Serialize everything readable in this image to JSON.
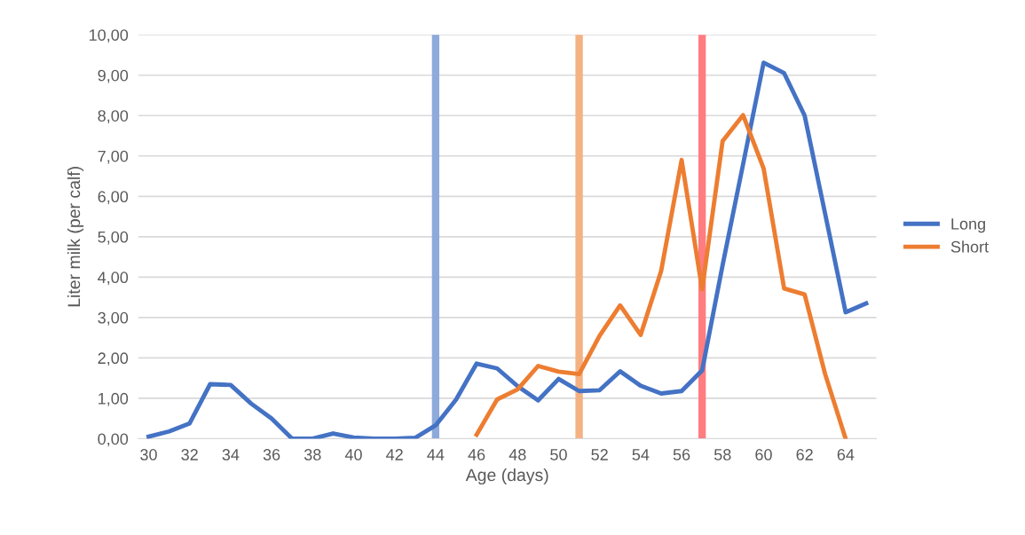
{
  "chart_data": {
    "type": "line",
    "xlabel": "Age (days)",
    "ylabel": "Liter milk (per calf)",
    "x": [
      30,
      31,
      32,
      33,
      34,
      35,
      36,
      37,
      38,
      39,
      40,
      41,
      42,
      43,
      44,
      45,
      46,
      47,
      48,
      49,
      50,
      51,
      52,
      53,
      54,
      55,
      56,
      57,
      58,
      59,
      60,
      61,
      62,
      63,
      64,
      65
    ],
    "series": [
      {
        "name": "Long",
        "color": "#4472c4",
        "values": [
          0.05,
          0.18,
          0.38,
          1.35,
          1.33,
          0.87,
          0.5,
          0,
          0,
          0.13,
          0.03,
          0,
          0,
          0.02,
          0.33,
          0.97,
          1.86,
          1.74,
          1.3,
          0.95,
          1.48,
          1.18,
          1.2,
          1.67,
          1.31,
          1.12,
          1.18,
          1.69,
          4.3,
          6.8,
          9.31,
          9.05,
          8.0,
          5.57,
          3.13,
          3.35
        ]
      },
      {
        "name": "Short",
        "color": "#ed7d31",
        "values": [
          null,
          null,
          null,
          null,
          null,
          null,
          null,
          null,
          null,
          null,
          null,
          null,
          null,
          null,
          null,
          null,
          0.1,
          0.97,
          1.22,
          1.8,
          1.66,
          1.6,
          2.55,
          3.3,
          2.57,
          4.15,
          6.9,
          3.7,
          7.37,
          8.01,
          6.69,
          3.72,
          3.57,
          1.6,
          0,
          null
        ]
      }
    ],
    "xlim": [
      29.5,
      65.5
    ],
    "xticks": [
      30,
      32,
      34,
      36,
      38,
      40,
      42,
      44,
      46,
      48,
      50,
      52,
      54,
      56,
      58,
      60,
      62,
      64
    ],
    "ylim": [
      0,
      10
    ],
    "yticks": [
      {
        "value": 0,
        "label": "0,00"
      },
      {
        "value": 1,
        "label": "1,00"
      },
      {
        "value": 2,
        "label": "2,00"
      },
      {
        "value": 3,
        "label": "3,00"
      },
      {
        "value": 4,
        "label": "4,00"
      },
      {
        "value": 5,
        "label": "5,00"
      },
      {
        "value": 6,
        "label": "6,00"
      },
      {
        "value": 7,
        "label": "7,00"
      },
      {
        "value": 8,
        "label": "8,00"
      },
      {
        "value": 9,
        "label": "9,00"
      },
      {
        "value": 10,
        "label": "10,00"
      }
    ],
    "ref_lines": [
      {
        "axis": "x",
        "value": 44,
        "color": "#8eaadb"
      },
      {
        "axis": "x",
        "value": 51,
        "color": "#f4b183"
      },
      {
        "axis": "x",
        "value": 57,
        "color": "#ff7c80"
      }
    ],
    "grid": "y",
    "legend": "right",
    "marker": "none",
    "line_style": "solid"
  }
}
